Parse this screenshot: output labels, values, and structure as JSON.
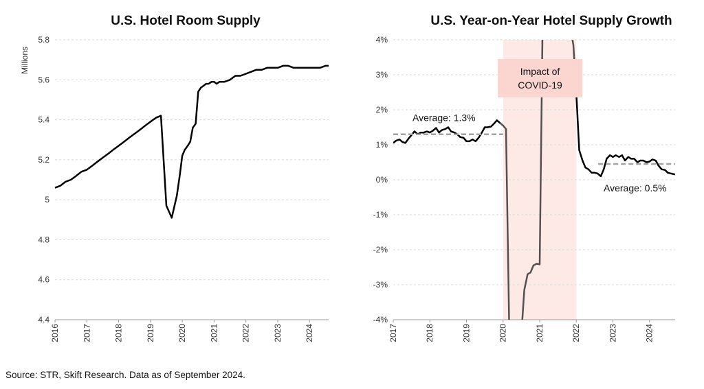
{
  "source": "Source: STR, Skift Research. Data as of September 2024.",
  "colors": {
    "line": "#000000",
    "covid_line": "#555050",
    "covid_band": "#fde9e6",
    "covid_box": "#fbd6d0",
    "average": "#a3a3a3",
    "grid": "#d9d9d9"
  },
  "chart_data": [
    {
      "type": "line",
      "title": "U.S. Hotel Room Supply",
      "ylabel": "Millions",
      "ylim": [
        4.4,
        5.8
      ],
      "xlim": [
        2016,
        2024.6
      ],
      "grid": true,
      "yticks": [
        {
          "value": 4.4,
          "label": "4.4"
        },
        {
          "value": 4.6,
          "label": "4.6"
        },
        {
          "value": 4.8,
          "label": "4.8"
        },
        {
          "value": 5.0,
          "label": "5"
        },
        {
          "value": 5.2,
          "label": "5.2"
        },
        {
          "value": 5.4,
          "label": "5.4"
        },
        {
          "value": 5.6,
          "label": "5.6"
        },
        {
          "value": 5.8,
          "label": "5.8"
        }
      ],
      "xticks": [
        {
          "value": 2016,
          "label": "2016"
        },
        {
          "value": 2017,
          "label": "2017"
        },
        {
          "value": 2018,
          "label": "2018"
        },
        {
          "value": 2019,
          "label": "2019"
        },
        {
          "value": 2020,
          "label": "2020"
        },
        {
          "value": 2021,
          "label": "2021"
        },
        {
          "value": 2022,
          "label": "2022"
        },
        {
          "value": 2023,
          "label": "2023"
        },
        {
          "value": 2024,
          "label": "2024"
        }
      ],
      "series": [
        {
          "x": [
            2016.0,
            2016.17,
            2016.33,
            2016.5,
            2016.67,
            2016.83,
            2017.0,
            2017.17,
            2017.33,
            2017.5,
            2017.67,
            2017.83,
            2018.0,
            2018.17,
            2018.33,
            2018.5,
            2018.67,
            2018.83,
            2019.0,
            2019.17,
            2019.33,
            2019.5,
            2019.67,
            2019.83,
            2019.92,
            2020.0,
            2020.08,
            2020.17,
            2020.25,
            2020.33,
            2020.42,
            2020.5,
            2020.58,
            2020.67,
            2020.75,
            2020.83,
            2020.92,
            2021.0,
            2021.08,
            2021.17,
            2021.33,
            2021.5,
            2021.67,
            2021.83,
            2022.0,
            2022.17,
            2022.33,
            2022.5,
            2022.67,
            2022.83,
            2023.0,
            2023.17,
            2023.33,
            2023.5,
            2023.67,
            2023.83,
            2024.0,
            2024.17,
            2024.33,
            2024.5,
            2024.6
          ],
          "y": [
            5.06,
            5.07,
            5.09,
            5.1,
            5.12,
            5.14,
            5.15,
            5.17,
            5.19,
            5.21,
            5.23,
            5.25,
            5.27,
            5.29,
            5.31,
            5.33,
            5.35,
            5.37,
            5.39,
            5.41,
            5.42,
            4.97,
            4.91,
            5.02,
            5.12,
            5.22,
            5.25,
            5.27,
            5.29,
            5.36,
            5.38,
            5.54,
            5.56,
            5.57,
            5.58,
            5.58,
            5.59,
            5.59,
            5.58,
            5.59,
            5.59,
            5.6,
            5.62,
            5.62,
            5.63,
            5.64,
            5.65,
            5.65,
            5.66,
            5.66,
            5.66,
            5.67,
            5.67,
            5.66,
            5.66,
            5.66,
            5.66,
            5.66,
            5.66,
            5.67,
            5.67
          ]
        }
      ]
    },
    {
      "type": "line",
      "title": "U.S. Year-on-Year Hotel Supply Growth",
      "ylim": [
        -4,
        4
      ],
      "xlim": [
        2017,
        2024.7
      ],
      "grid": true,
      "yticks": [
        {
          "value": -4,
          "label": "-4%"
        },
        {
          "value": -3,
          "label": "-3%"
        },
        {
          "value": -2,
          "label": "-2%"
        },
        {
          "value": -1,
          "label": "-1%"
        },
        {
          "value": 0,
          "label": "0%"
        },
        {
          "value": 1,
          "label": "1%"
        },
        {
          "value": 2,
          "label": "2%"
        },
        {
          "value": 3,
          "label": "3%"
        },
        {
          "value": 4,
          "label": "4%"
        }
      ],
      "xticks": [
        {
          "value": 2017,
          "label": "2017"
        },
        {
          "value": 2018,
          "label": "2018"
        },
        {
          "value": 2019,
          "label": "2019"
        },
        {
          "value": 2020,
          "label": "2020"
        },
        {
          "value": 2021,
          "label": "2021"
        },
        {
          "value": 2022,
          "label": "2022"
        },
        {
          "value": 2023,
          "label": "2023"
        },
        {
          "value": 2024,
          "label": "2024"
        }
      ],
      "covid_period": {
        "start": 2020.0,
        "end": 2022.0,
        "label_lines": [
          "Impact of",
          "COVID-19"
        ]
      },
      "averages": [
        {
          "start": 2017.0,
          "end": 2020.0,
          "value": 1.3,
          "label": "Average: 1.3%"
        },
        {
          "start": 2022.6,
          "end": 2024.7,
          "value": 0.45,
          "label": "Average: 0.5%"
        }
      ],
      "series": [
        {
          "segment": "pre",
          "x": [
            2017.0,
            2017.08,
            2017.17,
            2017.25,
            2017.33,
            2017.42,
            2017.5,
            2017.58,
            2017.67,
            2017.75,
            2017.83,
            2017.92,
            2018.0,
            2018.08,
            2018.17,
            2018.25,
            2018.33,
            2018.42,
            2018.5,
            2018.58,
            2018.67,
            2018.75,
            2018.83,
            2018.92,
            2019.0,
            2019.08,
            2019.17,
            2019.25,
            2019.33,
            2019.42,
            2019.5,
            2019.58,
            2019.67,
            2019.75,
            2019.83,
            2019.92
          ],
          "y": [
            1.05,
            1.12,
            1.15,
            1.08,
            1.05,
            1.18,
            1.28,
            1.38,
            1.3,
            1.35,
            1.35,
            1.38,
            1.35,
            1.4,
            1.48,
            1.35,
            1.42,
            1.45,
            1.5,
            1.38,
            1.35,
            1.3,
            1.22,
            1.2,
            1.1,
            1.1,
            1.15,
            1.1,
            1.2,
            1.35,
            1.5,
            1.5,
            1.52,
            1.6,
            1.7,
            1.62
          ]
        },
        {
          "segment": "covid",
          "x": [
            2019.92,
            2020.0,
            2020.08,
            2020.17,
            2020.25,
            2020.33,
            2020.42,
            2020.5,
            2020.58,
            2020.67,
            2020.75,
            2020.83,
            2020.92,
            2021.0,
            2021.08,
            2021.17,
            2021.25,
            2021.33,
            2021.42,
            2021.5,
            2021.58,
            2021.67,
            2021.75,
            2021.83,
            2021.92,
            2022.0
          ],
          "y": [
            1.62,
            1.55,
            1.45,
            -4.4,
            -4.4,
            -4.4,
            -4.4,
            -4.4,
            -3.15,
            -2.7,
            -2.65,
            -2.45,
            -2.4,
            -2.42,
            4.4,
            4.4,
            4.4,
            4.4,
            4.4,
            4.4,
            4.4,
            4.4,
            4.4,
            4.4,
            3.85,
            2.5
          ]
        },
        {
          "segment": "post",
          "x": [
            2022.0,
            2022.08,
            2022.17,
            2022.25,
            2022.33,
            2022.42,
            2022.5,
            2022.58,
            2022.67,
            2022.75,
            2022.83,
            2022.92,
            2023.0,
            2023.08,
            2023.17,
            2023.25,
            2023.33,
            2023.42,
            2023.5,
            2023.58,
            2023.67,
            2023.75,
            2023.83,
            2023.92,
            2024.0,
            2024.08,
            2024.17,
            2024.25,
            2024.33,
            2024.42,
            2024.5,
            2024.58,
            2024.7
          ],
          "y": [
            2.5,
            0.85,
            0.55,
            0.35,
            0.3,
            0.2,
            0.2,
            0.18,
            0.1,
            0.3,
            0.6,
            0.7,
            0.65,
            0.7,
            0.65,
            0.7,
            0.55,
            0.65,
            0.6,
            0.6,
            0.5,
            0.55,
            0.55,
            0.5,
            0.52,
            0.58,
            0.55,
            0.4,
            0.3,
            0.28,
            0.2,
            0.18,
            0.15
          ]
        }
      ]
    }
  ]
}
